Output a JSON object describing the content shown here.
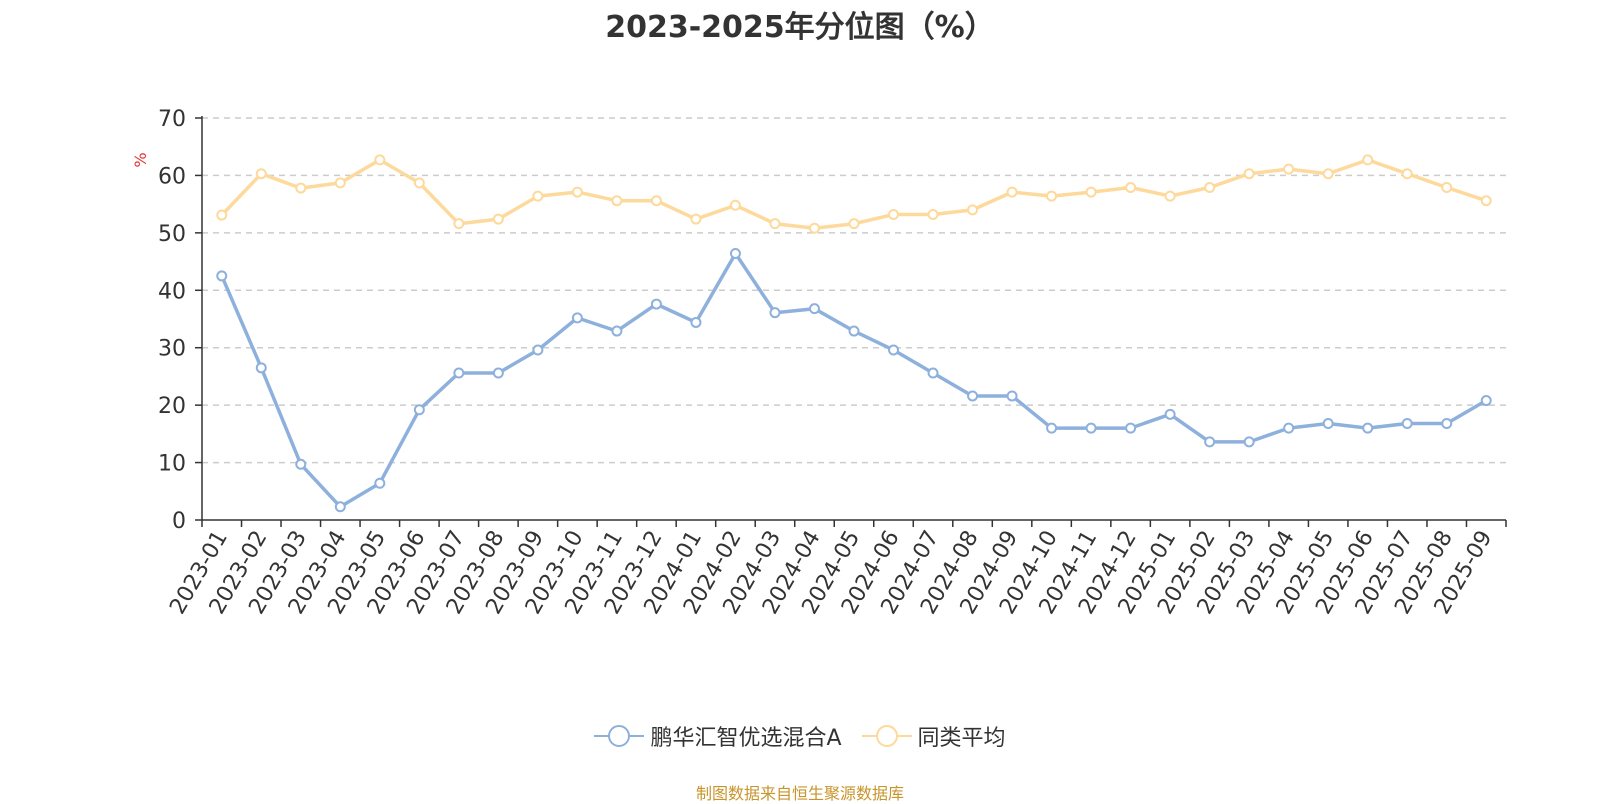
{
  "title": "2023-2025年分位图（%）",
  "source_note": "制图数据来自恒生聚源数据库",
  "colors": {
    "series_a": "#8eb0dc",
    "series_b": "#fdd99b",
    "y_unit": "#e33333",
    "axis": "#333333",
    "grid": "#cccccc",
    "source": "#c8952c"
  },
  "chart_data": {
    "type": "line",
    "title": "2023-2025年分位图（%）",
    "ylabel": "%",
    "xlabel": "",
    "ylim": [
      0,
      70
    ],
    "yticks": [
      0,
      10,
      20,
      30,
      40,
      50,
      60,
      70
    ],
    "grid": true,
    "legend_position": "bottom",
    "categories": [
      "2023-01",
      "2023-02",
      "2023-03",
      "2023-04",
      "2023-05",
      "2023-06",
      "2023-07",
      "2023-08",
      "2023-09",
      "2023-10",
      "2023-11",
      "2023-12",
      "2024-01",
      "2024-02",
      "2024-03",
      "2024-04",
      "2024-05",
      "2024-06",
      "2024-07",
      "2024-08",
      "2024-09",
      "2024-10",
      "2024-11",
      "2024-12",
      "2025-01",
      "2025-02",
      "2025-03",
      "2025-04",
      "2025-05",
      "2025-06",
      "2025-07",
      "2025-08",
      "2025-09"
    ],
    "series": [
      {
        "name": "鹏华汇智优选混合A",
        "values": [
          42.5,
          26.5,
          9.7,
          2.3,
          6.4,
          19.2,
          25.6,
          25.6,
          29.6,
          35.2,
          32.9,
          37.6,
          34.4,
          46.4,
          36.1,
          36.8,
          32.9,
          29.6,
          25.6,
          21.6,
          21.6,
          16.0,
          16.0,
          16.0,
          18.4,
          13.6,
          13.6,
          16.0,
          16.8,
          16.0,
          16.8,
          16.8,
          20.8
        ]
      },
      {
        "name": "同类平均",
        "values": [
          53.1,
          60.3,
          57.8,
          58.7,
          62.7,
          58.7,
          51.6,
          52.4,
          56.4,
          57.1,
          55.6,
          55.6,
          52.4,
          54.8,
          51.6,
          50.8,
          51.6,
          53.2,
          53.2,
          54.0,
          57.1,
          56.4,
          57.1,
          57.9,
          56.4,
          57.9,
          60.3,
          61.1,
          60.3,
          62.7,
          60.3,
          57.9,
          55.6
        ]
      }
    ]
  }
}
